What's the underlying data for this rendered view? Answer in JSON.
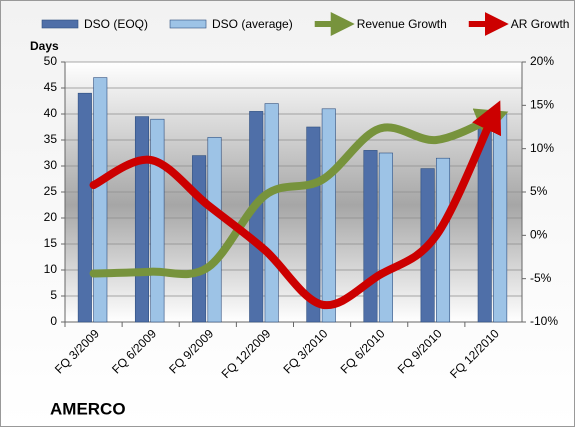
{
  "chart_data": {
    "type": "bar-line",
    "title": "AMERCO",
    "y_label": "Days",
    "categories": [
      "FQ 3/2009",
      "FQ 6/2009",
      "FQ 9/2009",
      "FQ 12/2009",
      "FQ 3/2010",
      "FQ 6/2010",
      "FQ 9/2010",
      "FQ 12/2010"
    ],
    "series": [
      {
        "name": "DSO (EOQ)",
        "color": "#4f6fa8",
        "type": "bar",
        "values": [
          44,
          39.5,
          32,
          40.5,
          37.5,
          33,
          29.5,
          40
        ]
      },
      {
        "name": "DSO (average)",
        "color": "#9dc3e6",
        "type": "bar",
        "values": [
          47,
          39,
          35.5,
          42,
          41,
          32.5,
          31.5,
          40
        ]
      },
      {
        "name": "Revenue Growth",
        "color": "#77933c",
        "type": "line",
        "axis": "y2",
        "values": [
          -4.4,
          -4.2,
          -3.7,
          4.6,
          6.4,
          12.3,
          11,
          13.6
        ]
      },
      {
        "name": "AR Growth",
        "color": "#cc0000",
        "type": "line",
        "axis": "y2",
        "values": [
          5.8,
          8.7,
          3.5,
          -1.7,
          -8,
          -4.6,
          0,
          13.9
        ]
      }
    ],
    "ylim": [
      0,
      50
    ],
    "yticks": [
      0,
      5,
      10,
      15,
      20,
      25,
      30,
      35,
      40,
      45,
      50
    ],
    "y2lim": [
      -10,
      20
    ],
    "y2ticks": [
      {
        "value": -10,
        "label": "-10%"
      },
      {
        "value": -5,
        "label": "-5%"
      },
      {
        "value": 0,
        "label": "0%"
      },
      {
        "value": 5,
        "label": "5%"
      },
      {
        "value": 10,
        "label": "10%"
      },
      {
        "value": 15,
        "label": "15%"
      },
      {
        "value": 20,
        "label": "20%"
      }
    ],
    "grid": true
  }
}
